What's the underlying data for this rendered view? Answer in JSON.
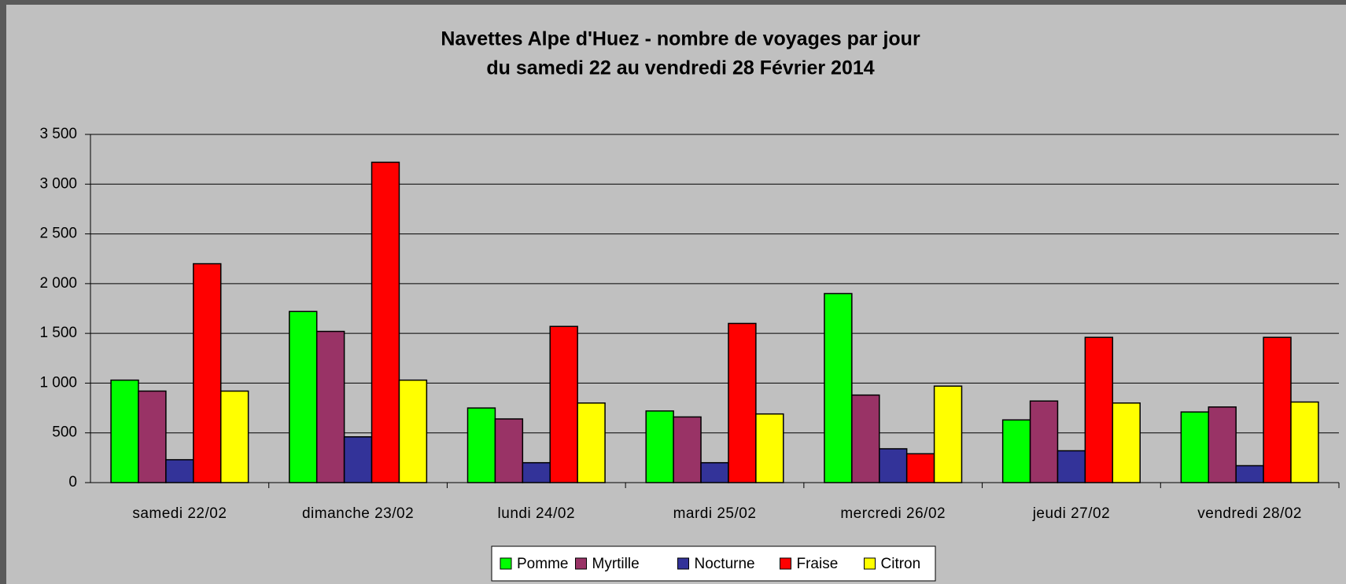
{
  "chart_data": {
    "type": "bar",
    "title": "Navettes Alpe d'Huez - nombre de voyages par jour",
    "subtitle": "du samedi 22 au vendredi 28 Février 2014",
    "categories": [
      "samedi 22/02",
      "dimanche 23/02",
      "lundi 24/02",
      "mardi 25/02",
      "mercredi 26/02",
      "jeudi 27/02",
      "vendredi 28/02"
    ],
    "series": [
      {
        "name": "Pomme",
        "color": "#00ff00",
        "values": [
          1030,
          1720,
          750,
          720,
          1900,
          630,
          710
        ]
      },
      {
        "name": "Myrtille",
        "color": "#993366",
        "values": [
          920,
          1520,
          640,
          660,
          880,
          820,
          760
        ]
      },
      {
        "name": "Nocturne",
        "color": "#333399",
        "values": [
          230,
          460,
          200,
          200,
          340,
          320,
          170
        ]
      },
      {
        "name": "Fraise",
        "color": "#ff0000",
        "values": [
          2200,
          3220,
          1570,
          1600,
          290,
          1460,
          1460
        ]
      },
      {
        "name": "Citron",
        "color": "#ffff00",
        "values": [
          920,
          1030,
          800,
          690,
          970,
          800,
          810
        ]
      }
    ],
    "ylim": [
      0,
      3500
    ],
    "yticks": [
      0,
      500,
      {
        "value": 1000,
        "label": "1 000"
      },
      {
        "value": 1500,
        "label": "1 500"
      },
      {
        "value": 2000,
        "label": "2 000"
      },
      {
        "value": 2500,
        "label": "2 500"
      },
      {
        "value": 3000,
        "label": "3 000"
      },
      {
        "value": 3500,
        "label": "3 500"
      }
    ],
    "grid": true,
    "legend": "bottom"
  }
}
